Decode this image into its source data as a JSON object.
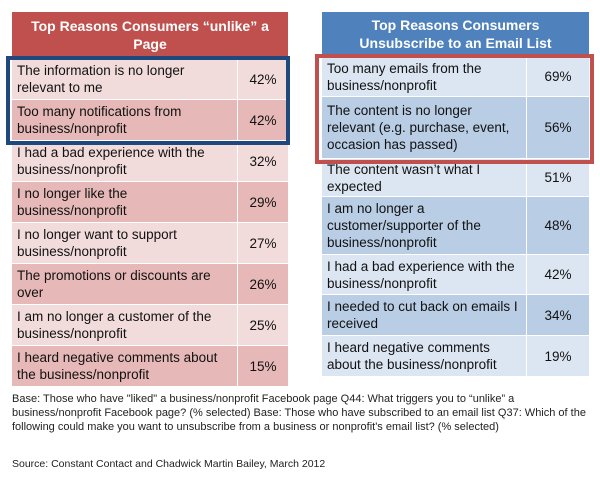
{
  "chart_data": [
    {
      "type": "table",
      "title": "Top Reasons Consumers “unlike” a Page",
      "rows": [
        {
          "reason": "The information is no longer relevant to me",
          "percent": "42%"
        },
        {
          "reason": "Too many notifications from business/nonprofit",
          "percent": "42%"
        },
        {
          "reason": "I had a bad experience with the business/nonprofit",
          "percent": "32%"
        },
        {
          "reason": "I no longer like the business/nonprofit",
          "percent": "29%"
        },
        {
          "reason": "I no longer want to support business/nonprofit",
          "percent": "27%"
        },
        {
          "reason": "The promotions or discounts are over",
          "percent": "26%"
        },
        {
          "reason": "I am no longer a customer of the business/nonprofit",
          "percent": "25%"
        },
        {
          "reason": "I heard negative comments about the business/nonprofit",
          "percent": "15%"
        }
      ],
      "highlight_color": "#1f497d",
      "header_color": "#c0504d"
    },
    {
      "type": "table",
      "title": "Top Reasons Consumers Unsubscribe to an Email List",
      "rows": [
        {
          "reason": "Too many emails from the business/nonprofit",
          "percent": "69%"
        },
        {
          "reason": "The content is no longer relevant (e.g. purchase, event, occasion has passed)",
          "percent": "56%"
        },
        {
          "reason": "The content wasn’t what I expected",
          "percent": "51%"
        },
        {
          "reason": "I am no longer a customer/supporter of the business/nonprofit",
          "percent": "48%"
        },
        {
          "reason": "I had a bad experience with the business/nonprofit",
          "percent": "42%"
        },
        {
          "reason": "I needed to cut back on emails I received",
          "percent": "34%"
        },
        {
          "reason": "I heard negative comments about the business/nonprofit",
          "percent": "19%"
        }
      ],
      "highlight_color": "#c0504d",
      "header_color": "#4f81bd"
    }
  ],
  "footnote": "Base: Those who have \"liked\" a business/nonprofit Facebook page  Q44: What triggers you to “unlike” a business/nonprofit Facebook page?  (% selected) Base: Those who have subscribed to an email list Q37: Which of the following could make you want to unsubscribe from a business or nonprofit's email list? (% selected)",
  "source": "Source: Constant Contact and Chadwick Martin Bailey, March 2012"
}
